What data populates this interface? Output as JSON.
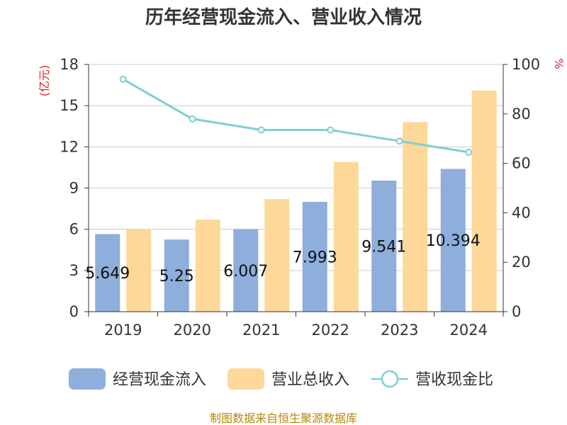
{
  "chart_data": {
    "type": "bar",
    "title": "历年经营现金流入、营业收入情况",
    "categories": [
      "2019",
      "2020",
      "2021",
      "2022",
      "2023",
      "2024"
    ],
    "series": [
      {
        "name": "经营现金流入",
        "kind": "bar",
        "axis": "left",
        "color": "#8eaedb",
        "values": [
          5.649,
          5.25,
          6.007,
          7.993,
          9.541,
          10.394
        ],
        "labels": [
          "5.649",
          "5.25",
          "6.007",
          "7.993",
          "9.541",
          "10.394"
        ]
      },
      {
        "name": "营业总收入",
        "kind": "bar",
        "axis": "left",
        "color": "#fdd899",
        "values": [
          6.0,
          6.7,
          8.2,
          10.9,
          13.8,
          16.1
        ]
      },
      {
        "name": "营收现金比",
        "kind": "line",
        "axis": "right",
        "color": "#7fcfd4",
        "values": [
          94,
          78,
          73.5,
          73.5,
          69,
          64.5
        ]
      }
    ],
    "left_axis": {
      "unit": "(亿元)",
      "ticks": [
        0,
        3,
        6,
        9,
        12,
        15,
        18
      ],
      "ylim": [
        0,
        18
      ]
    },
    "right_axis": {
      "unit": "%",
      "ticks": [
        0,
        20,
        40,
        60,
        80,
        100
      ],
      "ylim": [
        0,
        100
      ]
    },
    "grid": true,
    "legend_position": "bottom"
  },
  "source": "制图数据来自恒生聚源数据库"
}
